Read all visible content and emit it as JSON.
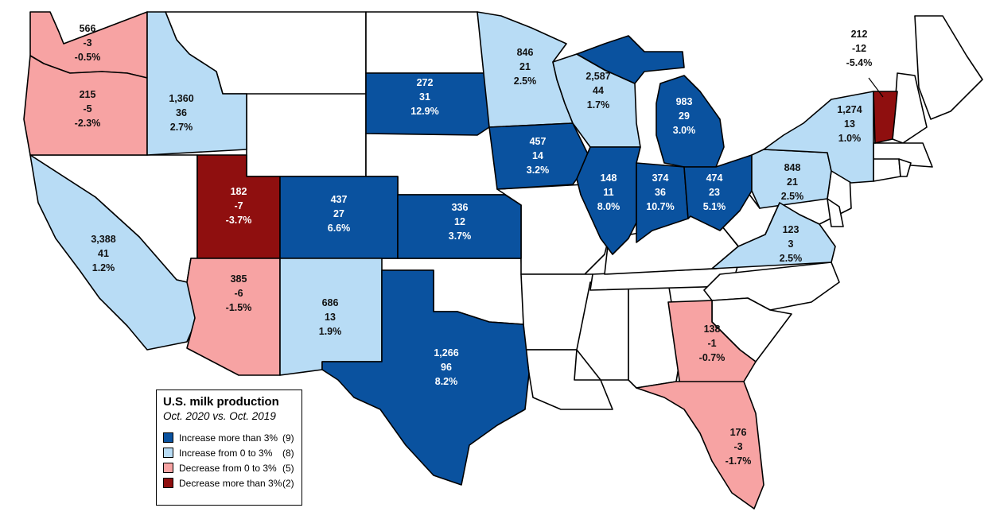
{
  "map": {
    "colors": {
      "increase_gt3": "#0a529f",
      "increase_0_3": "#b8dcf5",
      "decrease_0_3": "#f7a3a3",
      "decrease_gt3": "#8f0f0f",
      "other": "#ffffff"
    },
    "states": [
      {
        "id": "WA",
        "category": "decrease_0_3",
        "production": "566",
        "change": "-3",
        "percent": "-0.5%"
      },
      {
        "id": "OR",
        "category": "decrease_0_3",
        "production": "215",
        "change": "-5",
        "percent": "-2.3%"
      },
      {
        "id": "ID",
        "category": "increase_0_3",
        "production": "1,360",
        "change": "36",
        "percent": "2.7%"
      },
      {
        "id": "CA",
        "category": "increase_0_3",
        "production": "3,388",
        "change": "41",
        "percent": "1.2%"
      },
      {
        "id": "UT",
        "category": "decrease_gt3",
        "production": "182",
        "change": "-7",
        "percent": "-3.7%"
      },
      {
        "id": "AZ",
        "category": "decrease_0_3",
        "production": "385",
        "change": "-6",
        "percent": "-1.5%"
      },
      {
        "id": "CO",
        "category": "increase_gt3",
        "production": "437",
        "change": "27",
        "percent": "6.6%"
      },
      {
        "id": "NM",
        "category": "increase_0_3",
        "production": "686",
        "change": "13",
        "percent": "1.9%"
      },
      {
        "id": "SD",
        "category": "increase_gt3",
        "production": "272",
        "change": "31",
        "percent": "12.9%"
      },
      {
        "id": "KS",
        "category": "increase_gt3",
        "production": "336",
        "change": "12",
        "percent": "3.7%"
      },
      {
        "id": "TX",
        "category": "increase_gt3",
        "production": "1,266",
        "change": "96",
        "percent": "8.2%"
      },
      {
        "id": "MN",
        "category": "increase_0_3",
        "production": "846",
        "change": "21",
        "percent": "2.5%"
      },
      {
        "id": "IA",
        "category": "increase_gt3",
        "production": "457",
        "change": "14",
        "percent": "3.2%"
      },
      {
        "id": "WI",
        "category": "increase_0_3",
        "production": "2,587",
        "change": "44",
        "percent": "1.7%"
      },
      {
        "id": "IL",
        "category": "increase_gt3",
        "production": "148",
        "change": "11",
        "percent": "8.0%"
      },
      {
        "id": "IN",
        "category": "increase_gt3",
        "production": "374",
        "change": "36",
        "percent": "10.7%"
      },
      {
        "id": "MI",
        "category": "increase_gt3",
        "production": "983",
        "change": "29",
        "percent": "3.0%"
      },
      {
        "id": "OH",
        "category": "increase_gt3",
        "production": "474",
        "change": "23",
        "percent": "5.1%"
      },
      {
        "id": "PA",
        "category": "increase_0_3",
        "production": "848",
        "change": "21",
        "percent": "2.5%"
      },
      {
        "id": "NY",
        "category": "increase_0_3",
        "production": "1,274",
        "change": "13",
        "percent": "1.0%"
      },
      {
        "id": "VT",
        "category": "decrease_gt3",
        "production": "212",
        "change": "-12",
        "percent": "-5.4%"
      },
      {
        "id": "VA",
        "category": "increase_0_3",
        "production": "123",
        "change": "3",
        "percent": "2.5%"
      },
      {
        "id": "GA",
        "category": "decrease_0_3",
        "production": "138",
        "change": "-1",
        "percent": "-0.7%"
      },
      {
        "id": "FL",
        "category": "decrease_0_3",
        "production": "176",
        "change": "-3",
        "percent": "-1.7%"
      }
    ]
  },
  "legend": {
    "title": "U.S. milk production",
    "subtitle": "Oct. 2020 vs. Oct. 2019",
    "items": [
      {
        "category": "increase_gt3",
        "label": "Increase more than 3%",
        "count": "(9)"
      },
      {
        "category": "increase_0_3",
        "label": "Increase from 0 to 3%",
        "count": "(8)"
      },
      {
        "category": "decrease_0_3",
        "label": "Decrease from 0 to 3%",
        "count": "(5)"
      },
      {
        "category": "decrease_gt3",
        "label": "Decrease more than 3%",
        "count": "(2)"
      }
    ]
  }
}
